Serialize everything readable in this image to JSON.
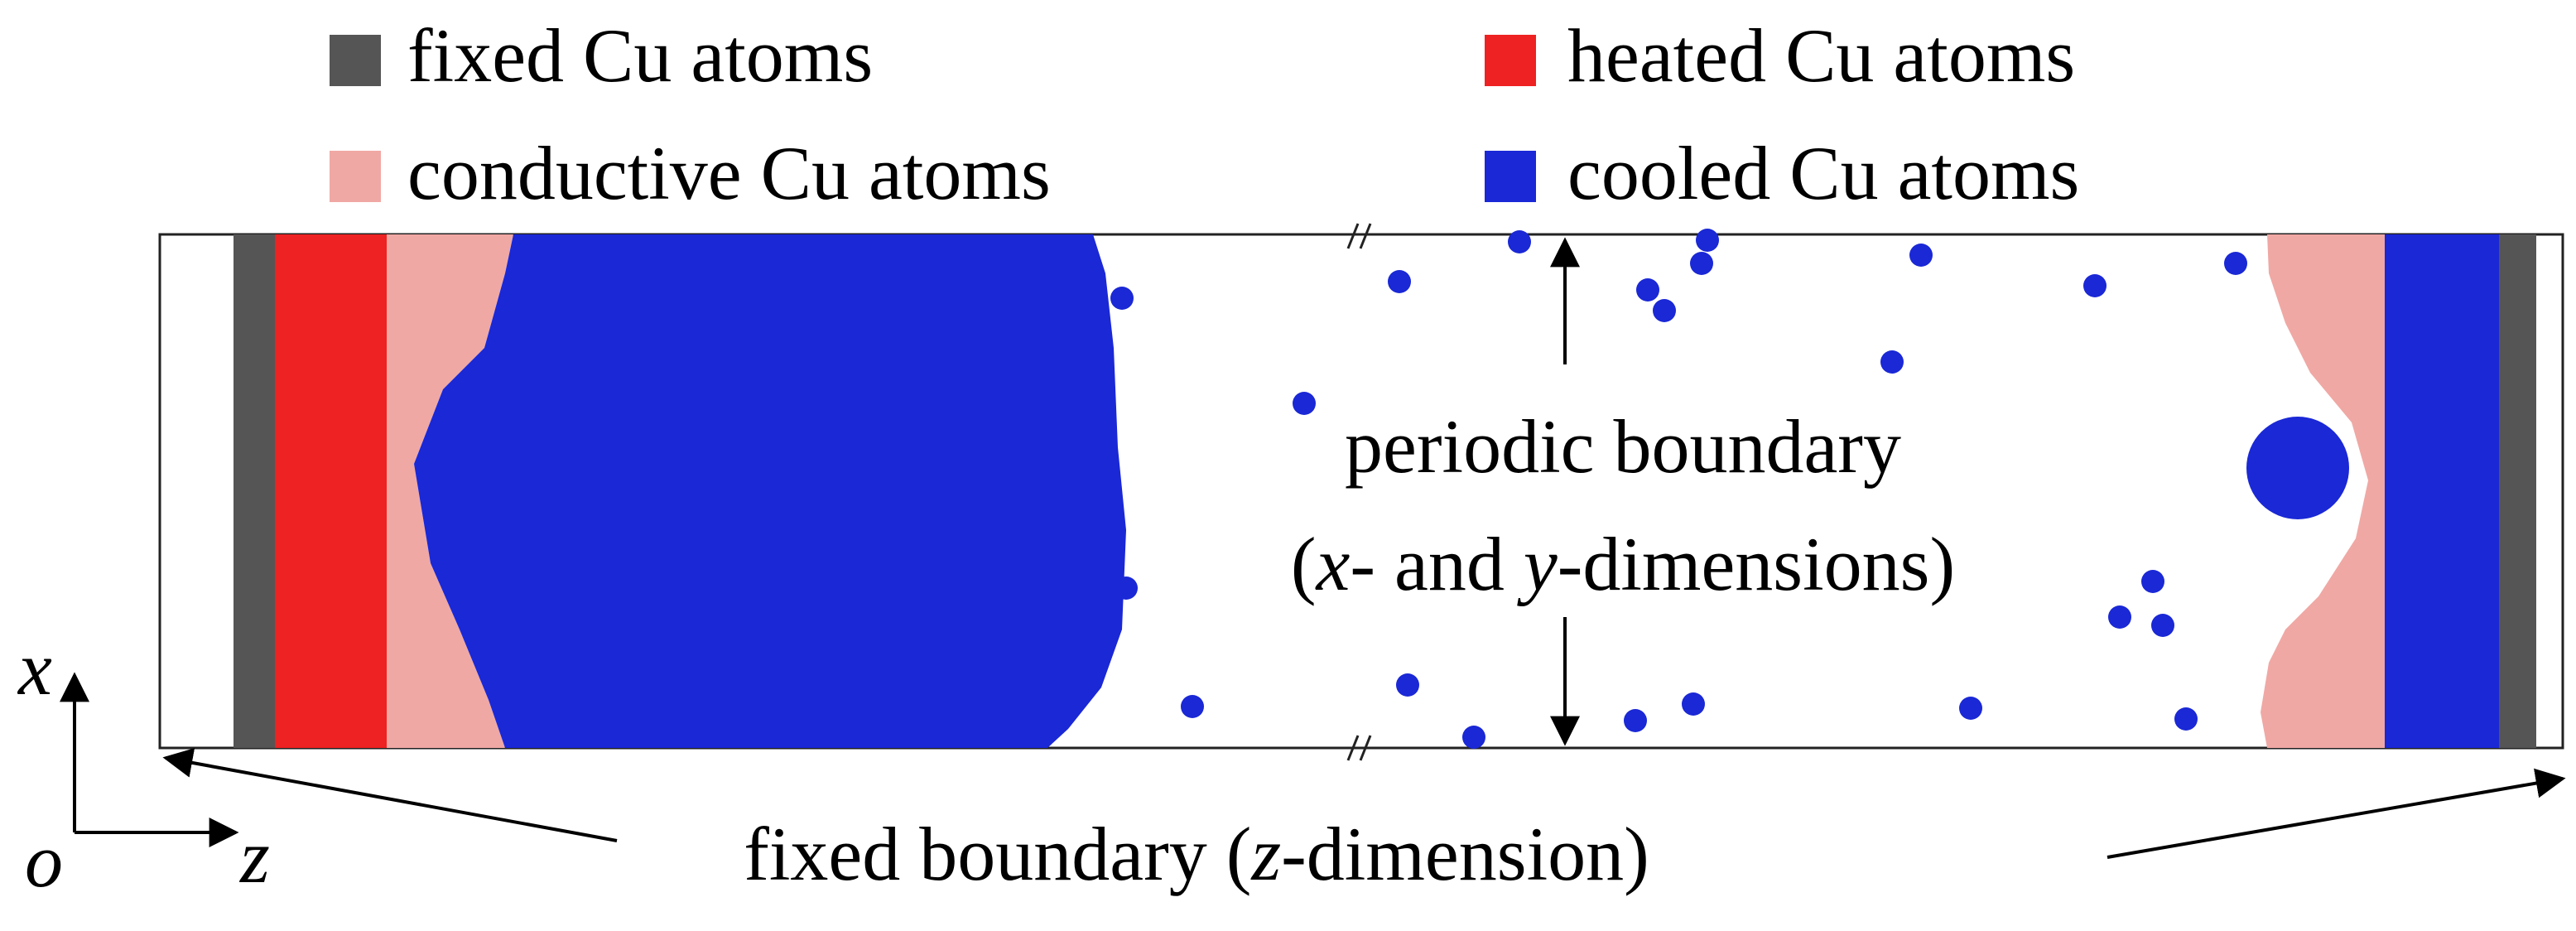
{
  "legend": {
    "items": [
      {
        "id": "fixed",
        "label": "fixed Cu atoms",
        "color": "#555555"
      },
      {
        "id": "heated",
        "label": "heated Cu atoms",
        "color": "#ee2222"
      },
      {
        "id": "conductive",
        "label": "conductive Cu atoms",
        "color": "#f0a8a4"
      },
      {
        "id": "cooled",
        "label": "cooled Cu atoms",
        "color": "#1a28d6"
      }
    ]
  },
  "annotations": {
    "periodic_line1": "periodic boundary",
    "periodic_line2_a": "(",
    "periodic_line2_x": "x",
    "periodic_line2_b": "- and ",
    "periodic_line2_y": "y",
    "periodic_line2_c": "-dimensions)",
    "fixed_a": "fixed boundary (",
    "fixed_z": "z",
    "fixed_b": "-dimension)"
  },
  "axes": {
    "x": "x",
    "z": "z",
    "origin": "o"
  },
  "colors": {
    "fixed": "#555555",
    "heated": "#ee2222",
    "conductive": "#f0a8a4",
    "cooled": "#1a28d6",
    "highlight": "#ffee22",
    "frame": "#222222"
  }
}
